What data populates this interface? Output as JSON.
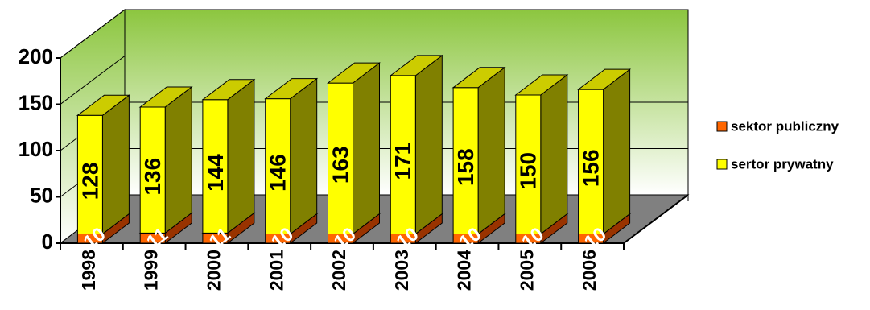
{
  "chart_data": {
    "type": "bar",
    "stacked": true,
    "three_d": true,
    "categories": [
      "1998",
      "1999",
      "2000",
      "2001",
      "2002",
      "2003",
      "2004",
      "2005",
      "2006"
    ],
    "series": [
      {
        "name": "sektor publiczny",
        "values": [
          10,
          11,
          11,
          10,
          10,
          10,
          10,
          10,
          10
        ],
        "color": "#ff6600"
      },
      {
        "name": "sertor prywatny",
        "values": [
          128,
          136,
          144,
          146,
          163,
          171,
          158,
          150,
          156
        ],
        "color": "#ffff00"
      }
    ],
    "y_ticks": [
      "0",
      "50",
      "100",
      "150",
      "200"
    ],
    "ylim": [
      0,
      200
    ],
    "grid": true,
    "legend_position": "right",
    "wall_gradient": [
      "#8cc63f",
      "#ffffff"
    ],
    "floor_color": "#808080",
    "series_side_colors": [
      "#993300",
      "#808000"
    ]
  }
}
